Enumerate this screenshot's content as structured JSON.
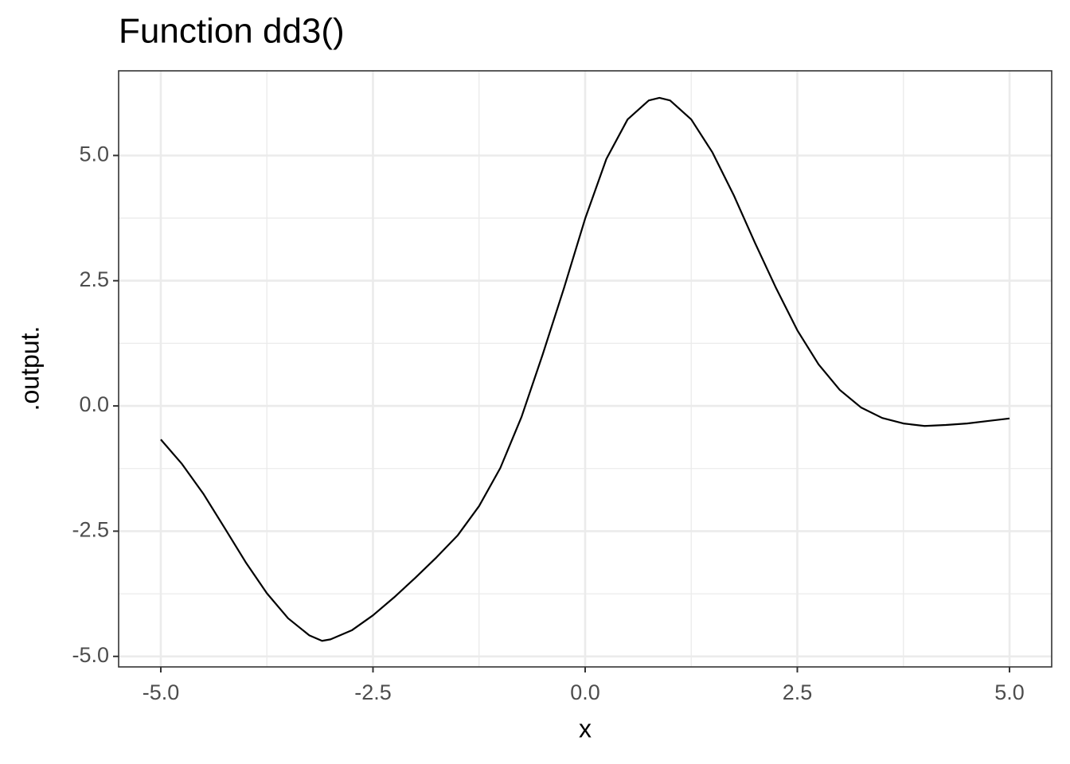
{
  "chart_data": {
    "type": "line",
    "title": "Function dd3()",
    "x_label": "x",
    "y_label": ".output.",
    "x": [
      -5,
      -4.75,
      -4.5,
      -4.25,
      -4,
      -3.75,
      -3.5,
      -3.25,
      -3.1,
      -3,
      -2.75,
      -2.5,
      -2.25,
      -2,
      -1.75,
      -1.5,
      -1.25,
      -1,
      -0.75,
      -0.5,
      -0.25,
      0,
      0.25,
      0.5,
      0.75,
      0.875,
      1,
      1.25,
      1.5,
      1.75,
      2,
      2.25,
      2.5,
      2.75,
      3,
      3.25,
      3.5,
      3.75,
      4,
      4.25,
      4.5,
      4.75,
      5
    ],
    "values": [
      -0.67,
      -1.16,
      -1.75,
      -2.43,
      -3.12,
      -3.74,
      -4.24,
      -4.58,
      -4.69,
      -4.66,
      -4.48,
      -4.18,
      -3.82,
      -3.43,
      -3.02,
      -2.58,
      -2.0,
      -1.24,
      -0.22,
      1.03,
      2.35,
      3.74,
      4.93,
      5.72,
      6.1,
      6.15,
      6.1,
      5.72,
      5.06,
      4.21,
      3.26,
      2.35,
      1.51,
      0.83,
      0.32,
      -0.03,
      -0.24,
      -0.35,
      -0.4,
      -0.38,
      -0.35,
      -0.3,
      -0.25
    ],
    "color": "#000000",
    "xlim": [
      -5.497,
      5.497
    ],
    "ylim": [
      -5.21,
      6.69
    ],
    "xticks": [
      {
        "value": -5,
        "label": "-5.0"
      },
      -2.5,
      {
        "value": 0,
        "label": "0.0"
      },
      2.5,
      {
        "value": 5,
        "label": "5.0"
      }
    ],
    "yticks": [
      {
        "value": -5,
        "label": "-5.0"
      },
      -2.5,
      {
        "value": 0,
        "label": "0.0"
      },
      2.5,
      {
        "value": 5,
        "label": "5.0"
      }
    ],
    "x_minor_grid": [
      -3.75,
      -1.25,
      1.25,
      3.75
    ],
    "y_minor_grid": [
      -3.75,
      -1.25,
      1.25,
      3.75
    ],
    "grid": true
  }
}
